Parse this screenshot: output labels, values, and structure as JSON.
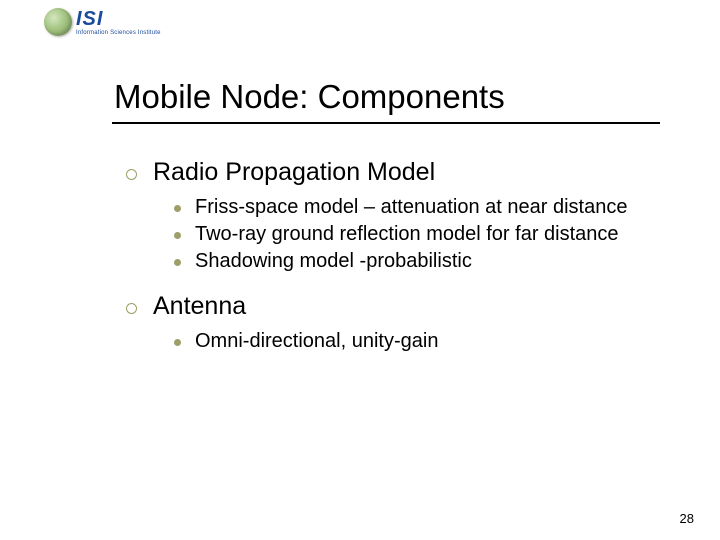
{
  "logo": {
    "acronym": "ISI",
    "tagline": "Information Sciences Institute"
  },
  "title": "Mobile Node: Components",
  "sections": [
    {
      "heading": "Radio Propagation Model",
      "items": [
        "Friss-space model – attenuation at near distance",
        "Two-ray ground reflection model for far distance",
        "Shadowing model -probabilistic"
      ]
    },
    {
      "heading": "Antenna",
      "items": [
        "Omni-directional, unity-gain"
      ]
    }
  ],
  "page_number": "28",
  "colors": {
    "bullet": "#9e9e6a",
    "logo_text": "#1a4a9c",
    "text": "#000000",
    "background": "#ffffff"
  },
  "fonts": {
    "title_family": "Arial",
    "title_size_pt": 33,
    "section_size_pt": 25,
    "item_size_pt": 20
  }
}
